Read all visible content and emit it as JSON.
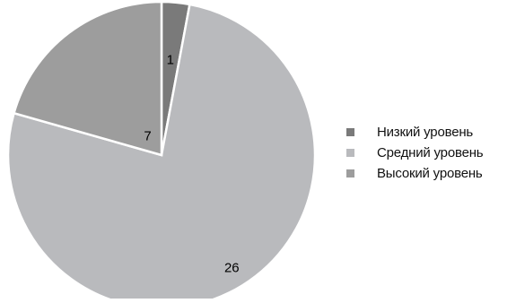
{
  "chart_data": {
    "type": "pie",
    "title": "",
    "categories": [
      "Низкий уровень",
      "Средний уровень",
      "Высокий уровень"
    ],
    "values": [
      1,
      26,
      7
    ],
    "data_labels": [
      "1",
      "26",
      "7"
    ],
    "colors": [
      "#7a7a7a",
      "#b9babd",
      "#9d9d9d"
    ],
    "start_angle_deg": 0,
    "direction": "clockwise",
    "legend_placement": "right"
  }
}
